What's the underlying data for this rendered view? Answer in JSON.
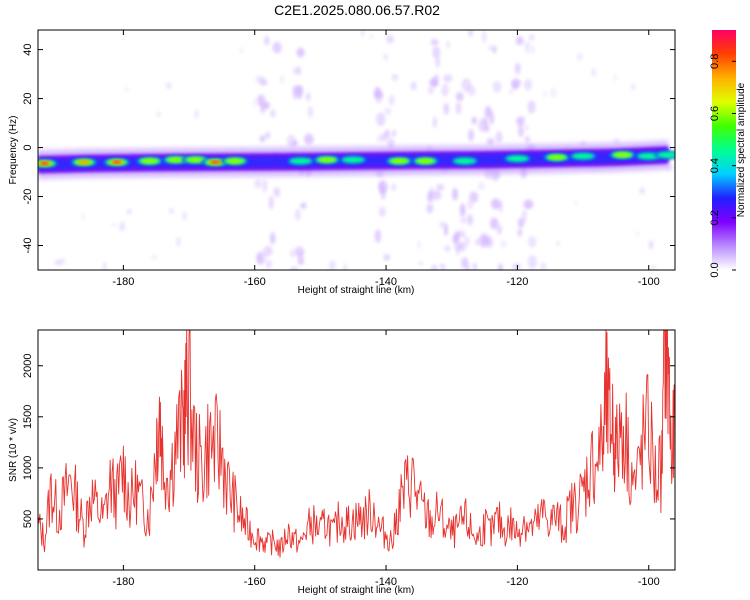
{
  "title": "C2E1.2025.080.06.57.R02",
  "chart_data": [
    {
      "type": "heatmap",
      "title": "C2E1.2025.080.06.57.R02",
      "xlabel": "Height of straight line (km)",
      "ylabel": "Frequency (Hz)",
      "xlim": [
        -193,
        -96
      ],
      "ylim": [
        -50,
        48
      ],
      "xticks": [
        -180,
        -160,
        -140,
        -120,
        -100
      ],
      "yticks": [
        -40,
        -20,
        0,
        20,
        40
      ],
      "grid": false,
      "colorbar": {
        "label": "Normalized spectral amplitude",
        "range": [
          0,
          0.92
        ],
        "ticks": [
          0.0,
          0.2,
          0.4,
          0.6,
          0.8
        ],
        "colors": [
          "#ffffff",
          "#b98cff",
          "#7f00ff",
          "#2020ff",
          "#00d0ff",
          "#00ff90",
          "#40ff00",
          "#e0ff00",
          "#ffb000",
          "#ff4000",
          "#ff0066"
        ]
      },
      "ridge": {
        "x": [
          -193,
          -185,
          -175,
          -165,
          -155,
          -145,
          -135,
          -125,
          -115,
          -105,
          -97
        ],
        "frequency": [
          -7,
          -6.5,
          -6.2,
          -6,
          -5.8,
          -5.5,
          -5.2,
          -5,
          -4.5,
          -4,
          -3
        ]
      },
      "hotspots": [
        {
          "x": -192,
          "y": -6.5,
          "amplitude": 0.9
        },
        {
          "x": -186,
          "y": -6,
          "amplitude": 0.75
        },
        {
          "x": -181,
          "y": -6,
          "amplitude": 0.9
        },
        {
          "x": -176,
          "y": -5.5,
          "amplitude": 0.7
        },
        {
          "x": -172,
          "y": -5,
          "amplitude": 0.65
        },
        {
          "x": -169,
          "y": -5,
          "amplitude": 0.7
        },
        {
          "x": -166,
          "y": -6,
          "amplitude": 0.9
        },
        {
          "x": -163,
          "y": -5.5,
          "amplitude": 0.65
        },
        {
          "x": -153,
          "y": -5.5,
          "amplitude": 0.55
        },
        {
          "x": -149,
          "y": -5,
          "amplitude": 0.65
        },
        {
          "x": -145,
          "y": -5,
          "amplitude": 0.55
        },
        {
          "x": -138,
          "y": -5.5,
          "amplitude": 0.65
        },
        {
          "x": -134,
          "y": -5.5,
          "amplitude": 0.6
        },
        {
          "x": -128,
          "y": -5.5,
          "amplitude": 0.55
        },
        {
          "x": -120,
          "y": -4.5,
          "amplitude": 0.55
        },
        {
          "x": -114,
          "y": -4,
          "amplitude": 0.65
        },
        {
          "x": -110,
          "y": -3.5,
          "amplitude": 0.55
        },
        {
          "x": -104,
          "y": -3,
          "amplitude": 0.65
        },
        {
          "x": -100,
          "y": -3.5,
          "amplitude": 0.55
        },
        {
          "x": -97,
          "y": -3,
          "amplitude": 0.5
        }
      ],
      "noise_columns_x": [
        -158,
        -153,
        -140,
        -132,
        -128,
        -124,
        -119
      ]
    },
    {
      "type": "line",
      "xlabel": "Height of straight line (km)",
      "ylabel": "SNR (10 * v/v)",
      "xlim": [
        -193,
        -96
      ],
      "ylim": [
        0,
        2350
      ],
      "xticks": [
        -180,
        -160,
        -140,
        -120,
        -100
      ],
      "yticks": [
        500,
        1000,
        1500,
        2000
      ],
      "grid": false,
      "color": "#e8322e",
      "x": [
        -193,
        -192,
        -191,
        -190,
        -189,
        -188,
        -187,
        -186,
        -185,
        -184,
        -183,
        -182,
        -181,
        -180,
        -179,
        -178,
        -177,
        -176,
        -175,
        -174.5,
        -174,
        -173,
        -172,
        -171,
        -170.5,
        -170,
        -169,
        -168,
        -167,
        -166,
        -165,
        -164,
        -163,
        -162,
        -161,
        -160,
        -159,
        -158,
        -157,
        -156,
        -155,
        -154,
        -153,
        -152,
        -151,
        -150,
        -149,
        -148,
        -147,
        -146,
        -145,
        -144,
        -143,
        -142,
        -141,
        -140,
        -139,
        -138,
        -137,
        -136,
        -135,
        -134,
        -133,
        -132,
        -131,
        -130,
        -129,
        -128,
        -127,
        -126,
        -125,
        -124,
        -123,
        -122,
        -121,
        -120,
        -119,
        -118,
        -117,
        -116,
        -115,
        -114,
        -113,
        -112,
        -111,
        -110,
        -109,
        -108,
        -107,
        -106.5,
        -106,
        -105.5,
        -105,
        -104,
        -103,
        -102,
        -101,
        -100,
        -99,
        -98,
        -97.5,
        -97,
        -96.5,
        -96
      ],
      "values": [
        450,
        300,
        800,
        550,
        700,
        900,
        650,
        400,
        750,
        600,
        500,
        850,
        700,
        1000,
        650,
        800,
        600,
        550,
        1300,
        1600,
        1100,
        900,
        1250,
        1400,
        1650,
        1780,
        1150,
        1000,
        1250,
        1200,
        1150,
        800,
        650,
        500,
        400,
        350,
        300,
        250,
        280,
        200,
        380,
        300,
        250,
        420,
        450,
        380,
        480,
        350,
        520,
        450,
        480,
        500,
        520,
        600,
        400,
        350,
        280,
        650,
        800,
        900,
        650,
        550,
        450,
        580,
        420,
        350,
        400,
        500,
        380,
        300,
        450,
        350,
        500,
        380,
        450,
        350,
        500,
        400,
        450,
        550,
        480,
        520,
        400,
        600,
        650,
        750,
        1000,
        1100,
        1200,
        1700,
        1400,
        1450,
        1100,
        1500,
        1100,
        800,
        1200,
        1400,
        900,
        1000,
        2350,
        1950,
        1000,
        1500
      ]
    }
  ]
}
